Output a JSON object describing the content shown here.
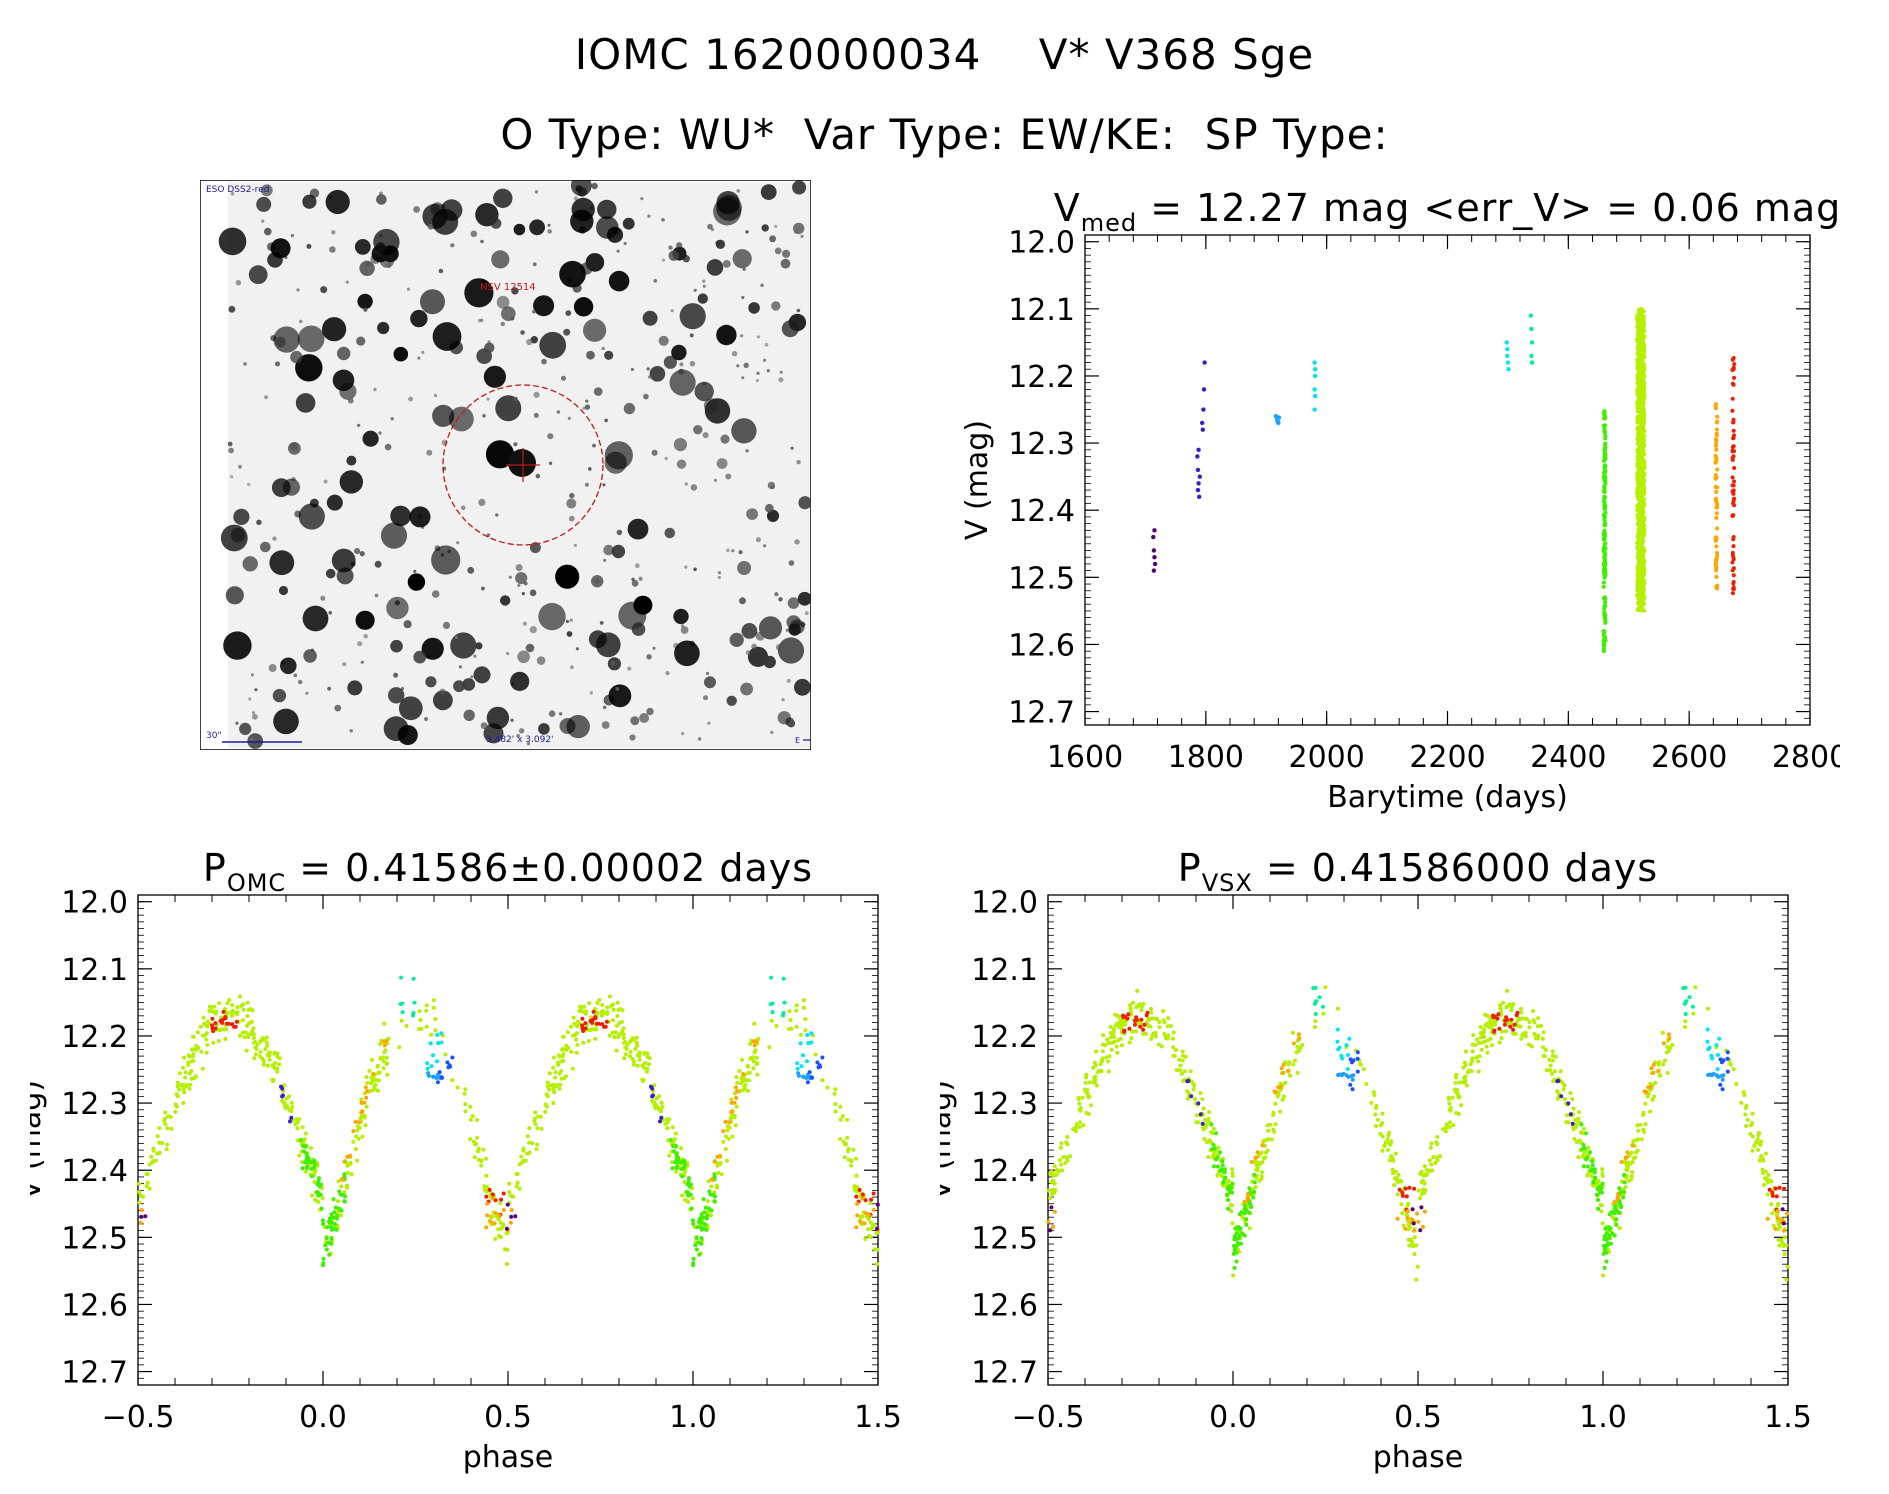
{
  "header": {
    "line1_id": "IOMC 1620000034",
    "line1_name": "V* V368 Sge",
    "line2_otype": "O Type: WU*",
    "line2_vartype": "Var Type: EW/KE:",
    "line2_sptype": "SP Type:"
  },
  "sky_image": {
    "survey_label": "ESO DSS2-red",
    "target_label": "NSV 12514",
    "scale_label": "30\"",
    "fov_label": "3.482' x 3.092'",
    "north_label": "N",
    "east_label": "E"
  },
  "colors": {
    "purple": "#5a0078",
    "indigo": "#3c1ec8",
    "blue": "#1e50ff",
    "lightblue": "#1ea0ff",
    "cyan": "#00e6f0",
    "teal": "#00f09a",
    "green": "#3cf000",
    "yellowgreen": "#b4f000",
    "orange": "#ffa500",
    "red": "#f01e00"
  },
  "chart_data": [
    {
      "id": "lightcurve",
      "type": "scatter",
      "title_main": "V",
      "title_sub": "med",
      "title_rest": " = 12.27 mag <err_V> = 0.06 mag",
      "xlabel": "Barytime (days)",
      "ylabel": "V (mag)",
      "xlim": [
        1600,
        2800
      ],
      "ylim": [
        12.72,
        11.99
      ],
      "y_inverted": true,
      "xticks": [
        1600,
        1800,
        2000,
        2200,
        2400,
        2600,
        2800
      ],
      "yticks": [
        12.0,
        12.1,
        12.2,
        12.3,
        12.4,
        12.5,
        12.6,
        12.7
      ],
      "groups": [
        {
          "color": "purple",
          "x": 1715,
          "y_range": [
            12.43,
            12.49
          ],
          "points": [
            [
              1713,
              12.44
            ],
            [
              1714,
              12.46
            ],
            [
              1715,
              12.47
            ],
            [
              1716,
              12.48
            ],
            [
              1714,
              12.49
            ],
            [
              1715,
              12.43
            ]
          ]
        },
        {
          "color": "indigo",
          "x": 1790,
          "y_range": [
            12.18,
            12.38
          ],
          "points": [
            [
              1786,
              12.32
            ],
            [
              1787,
              12.34
            ],
            [
              1788,
              12.36
            ],
            [
              1789,
              12.38
            ],
            [
              1790,
              12.35
            ],
            [
              1794,
              12.27
            ],
            [
              1796,
              12.25
            ],
            [
              1797,
              12.22
            ],
            [
              1798,
              12.18
            ],
            [
              1795,
              12.28
            ],
            [
              1787,
              12.37
            ],
            [
              1788,
              12.31
            ]
          ]
        },
        {
          "color": "lightblue",
          "x": 1920,
          "y_range": [
            12.26,
            12.27
          ],
          "points": [
            [
              1916,
              12.26
            ],
            [
              1918,
              12.265
            ],
            [
              1920,
              12.27
            ],
            [
              1921,
              12.262
            ],
            [
              1919,
              12.268
            ]
          ]
        },
        {
          "color": "cyan",
          "x": 1980,
          "y_range": [
            12.18,
            12.25
          ],
          "points": [
            [
              1980,
              12.18
            ],
            [
              1981,
              12.2
            ],
            [
              1980,
              12.22
            ],
            [
              1981,
              12.23
            ],
            [
              1980,
              12.25
            ],
            [
              1981,
              12.19
            ]
          ]
        },
        {
          "color": "cyan",
          "x": 2300,
          "y_range": [
            12.15,
            12.19
          ],
          "points": [
            [
              2298,
              12.15
            ],
            [
              2299,
              12.17
            ],
            [
              2300,
              12.18
            ],
            [
              2301,
              12.19
            ],
            [
              2299,
              12.16
            ]
          ]
        },
        {
          "color": "teal",
          "x": 2340,
          "y_range": [
            12.11,
            12.18
          ],
          "points": [
            [
              2338,
              12.11
            ],
            [
              2339,
              12.13
            ],
            [
              2340,
              12.15
            ],
            [
              2339,
              12.17
            ],
            [
              2340,
              12.18
            ]
          ]
        },
        {
          "color": "green",
          "x": 2460,
          "y_range": [
            12.25,
            12.61
          ]
        },
        {
          "color": "yellowgreen",
          "x": 2520,
          "y_range": [
            12.1,
            12.55
          ]
        },
        {
          "color": "orange",
          "x": 2645,
          "y_range": [
            12.24,
            12.52
          ]
        },
        {
          "color": "red",
          "x": 2673,
          "y_range": [
            12.17,
            12.53
          ]
        }
      ]
    },
    {
      "id": "phase_omc",
      "type": "scatter",
      "title_main": "P",
      "title_sub": "OMC",
      "title_rest": " = 0.41586±0.00002 days",
      "xlabel": "phase",
      "ylabel": "V (mag)",
      "xlim": [
        -0.5,
        1.5
      ],
      "ylim": [
        12.72,
        11.99
      ],
      "y_inverted": true,
      "xticks": [
        -0.5,
        0.0,
        0.5,
        1.0,
        1.5
      ],
      "xtick_labels": [
        "−0.5",
        "0.0",
        "0.5",
        "1.0",
        "1.5"
      ],
      "yticks": [
        12.0,
        12.1,
        12.2,
        12.3,
        12.4,
        12.5,
        12.6,
        12.7
      ],
      "period_days": 0.41586,
      "curve": {
        "max_phase": -0.25,
        "max_mag": 12.17,
        "min_phase": 0.0,
        "min_mag": 12.52,
        "secondary_min_phase": 0.5,
        "secondary_min_mag": 12.44
      }
    },
    {
      "id": "phase_vsx",
      "type": "scatter",
      "title_main": "P",
      "title_sub": "VSX",
      "title_rest": " = 0.41586000 days",
      "xlabel": "phase",
      "ylabel": "V (mag)",
      "xlim": [
        -0.5,
        1.5
      ],
      "ylim": [
        12.72,
        11.99
      ],
      "y_inverted": true,
      "xticks": [
        -0.5,
        0.0,
        0.5,
        1.0,
        1.5
      ],
      "xtick_labels": [
        "−0.5",
        "0.0",
        "0.5",
        "1.0",
        "1.5"
      ],
      "yticks": [
        12.0,
        12.1,
        12.2,
        12.3,
        12.4,
        12.5,
        12.6,
        12.7
      ],
      "period_days": 0.41586,
      "curve": {
        "max_phase": -0.25,
        "max_mag": 12.17,
        "min_phase": 0.0,
        "min_mag": 12.52,
        "secondary_min_phase": 0.5,
        "secondary_min_mag": 12.44
      }
    }
  ]
}
